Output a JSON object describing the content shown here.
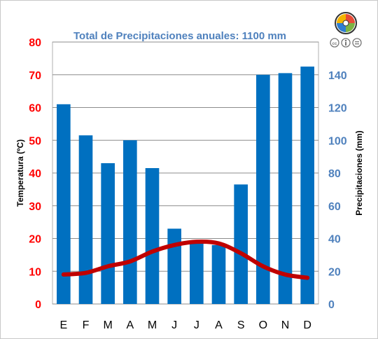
{
  "chart_data": {
    "type": "bar",
    "title": "Total de Precipitaciones anuales: 1100 mm",
    "categories": [
      "E",
      "F",
      "M",
      "A",
      "M",
      "J",
      "J",
      "A",
      "S",
      "O",
      "N",
      "D"
    ],
    "series": [
      {
        "name": "Precipitaciones (mm)",
        "type": "bar",
        "axis": "right",
        "color": "#0070c0",
        "values": [
          122,
          103,
          86,
          100,
          83,
          46,
          37,
          36,
          73,
          140,
          141,
          145
        ]
      },
      {
        "name": "Temperatura (ºC)",
        "type": "line",
        "axis": "left",
        "color": "#c00000",
        "values": [
          9,
          9.5,
          11.5,
          13,
          16,
          18,
          19,
          18.5,
          15.5,
          11.5,
          9,
          8
        ]
      }
    ],
    "ylabel_left": "Temperatura (ºC)",
    "ylabel_right": "Precipitaciones (mm)",
    "ylim_left": [
      0,
      80
    ],
    "ylim_right": [
      0,
      160
    ],
    "yticks_left": [
      "0",
      "10",
      "20",
      "30",
      "40",
      "50",
      "60",
      "70",
      "80"
    ],
    "yticks_right": [
      "0",
      "20",
      "40",
      "60",
      "80",
      "100",
      "120",
      "140"
    ],
    "left_axis_color": "#ff0000",
    "right_axis_color": "#4f81bd",
    "grid": true
  },
  "icons": {
    "logo": "puzzle-logo-icon",
    "license": "creative-commons-by-nd-icon"
  }
}
